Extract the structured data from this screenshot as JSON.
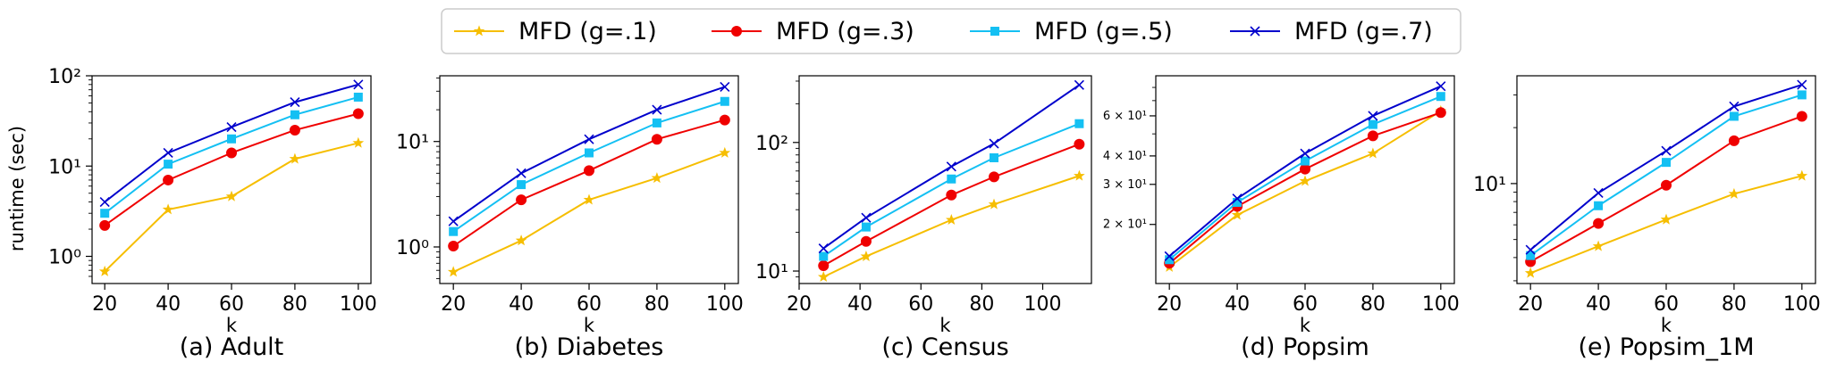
{
  "legend": {
    "entries": [
      {
        "label": "MFD (g=.1)",
        "color": "#f6be00",
        "marker": "star"
      },
      {
        "label": "MFD (g=.3)",
        "color": "#ef0000",
        "marker": "circle"
      },
      {
        "label": "MFD (g=.5)",
        "color": "#14c0f3",
        "marker": "square"
      },
      {
        "label": "MFD (g=.7)",
        "color": "#0000cc",
        "marker": "x"
      }
    ]
  },
  "chart_data": [
    {
      "type": "line",
      "caption": "(a) Adult",
      "xlabel": "k",
      "ylabel": "runtime (sec)",
      "yscale": "log",
      "xlim": [
        16,
        104
      ],
      "ylim": [
        0.5,
        100
      ],
      "x_ticks": [
        20,
        40,
        60,
        80,
        100
      ],
      "y_major_ticks": [
        1,
        10,
        100
      ],
      "y_tick_labels": [
        "10⁰",
        "10¹",
        "10²"
      ],
      "series": [
        {
          "name": "MFD (g=.1)",
          "x": [
            20,
            40,
            60,
            80,
            100
          ],
          "values": [
            0.68,
            3.3,
            4.6,
            12,
            18
          ]
        },
        {
          "name": "MFD (g=.3)",
          "x": [
            20,
            40,
            60,
            80,
            100
          ],
          "values": [
            2.2,
            7,
            14,
            25,
            38
          ]
        },
        {
          "name": "MFD (g=.5)",
          "x": [
            20,
            40,
            60,
            80,
            100
          ],
          "values": [
            3,
            10.5,
            20,
            37,
            58
          ]
        },
        {
          "name": "MFD (g=.7)",
          "x": [
            20,
            40,
            60,
            80,
            100
          ],
          "values": [
            4,
            14,
            27,
            51,
            80
          ]
        }
      ]
    },
    {
      "type": "line",
      "caption": "(b) Diabetes",
      "xlabel": "k",
      "ylabel": "",
      "yscale": "log",
      "xlim": [
        16,
        104
      ],
      "ylim": [
        0.45,
        42
      ],
      "x_ticks": [
        20,
        40,
        60,
        80,
        100
      ],
      "y_major_ticks": [
        1,
        10
      ],
      "y_tick_labels": [
        "10⁰",
        "10¹"
      ],
      "series": [
        {
          "name": "MFD (g=.1)",
          "x": [
            20,
            40,
            60,
            80,
            100
          ],
          "values": [
            0.58,
            1.15,
            2.8,
            4.5,
            7.8
          ]
        },
        {
          "name": "MFD (g=.3)",
          "x": [
            20,
            40,
            60,
            80,
            100
          ],
          "values": [
            1.02,
            2.8,
            5.3,
            10.5,
            16
          ]
        },
        {
          "name": "MFD (g=.5)",
          "x": [
            20,
            40,
            60,
            80,
            100
          ],
          "values": [
            1.4,
            3.9,
            7.8,
            15,
            24
          ]
        },
        {
          "name": "MFD (g=.7)",
          "x": [
            20,
            40,
            60,
            80,
            100
          ],
          "values": [
            1.75,
            5,
            10.5,
            20,
            33
          ]
        }
      ]
    },
    {
      "type": "line",
      "caption": "(c) Census",
      "xlabel": "k",
      "ylabel": "",
      "yscale": "log",
      "xlim": [
        20,
        116
      ],
      "ylim": [
        8,
        330
      ],
      "x_ticks": [
        20,
        40,
        60,
        80,
        100
      ],
      "y_major_ticks": [
        10,
        100
      ],
      "y_tick_labels": [
        "10¹",
        "10²"
      ],
      "series": [
        {
          "name": "MFD (g=.1)",
          "x": [
            28,
            42,
            70,
            84,
            112
          ],
          "values": [
            9,
            13,
            25,
            33,
            55
          ]
        },
        {
          "name": "MFD (g=.3)",
          "x": [
            28,
            42,
            70,
            84,
            112
          ],
          "values": [
            11,
            17,
            39,
            54,
            97
          ]
        },
        {
          "name": "MFD (g=.5)",
          "x": [
            28,
            42,
            70,
            84,
            112
          ],
          "values": [
            13,
            22,
            52,
            76,
            140
          ]
        },
        {
          "name": "MFD (g=.7)",
          "x": [
            28,
            42,
            70,
            84,
            112
          ],
          "values": [
            15,
            26,
            65,
            98,
            280
          ]
        }
      ]
    },
    {
      "type": "line",
      "caption": "(d) Popsim",
      "xlabel": "k",
      "ylabel": "",
      "yscale": "log",
      "xlim": [
        16,
        104
      ],
      "ylim": [
        11,
        90
      ],
      "x_ticks": [
        20,
        40,
        60,
        80,
        100
      ],
      "y_major_ticks": [
        20,
        30,
        40,
        60
      ],
      "y_tick_labels": [
        "2 × 10¹",
        "3 × 10¹",
        "4 × 10¹",
        "6 × 10¹"
      ],
      "y_tick_label_style": "small",
      "series": [
        {
          "name": "MFD (g=.1)",
          "x": [
            20,
            40,
            60,
            80,
            100
          ],
          "values": [
            13,
            22,
            31,
            41,
            63
          ]
        },
        {
          "name": "MFD (g=.3)",
          "x": [
            20,
            40,
            60,
            80,
            100
          ],
          "values": [
            13.5,
            24,
            35,
            49,
            62
          ]
        },
        {
          "name": "MFD (g=.5)",
          "x": [
            20,
            40,
            60,
            80,
            100
          ],
          "values": [
            14,
            25,
            38,
            55,
            73
          ]
        },
        {
          "name": "MFD (g=.7)",
          "x": [
            20,
            40,
            60,
            80,
            100
          ],
          "values": [
            14.5,
            26,
            41,
            60,
            81
          ]
        }
      ]
    },
    {
      "type": "line",
      "caption": "(e) Popsim_1M",
      "xlabel": "k",
      "ylabel": "",
      "yscale": "log",
      "xlim": [
        16,
        104
      ],
      "ylim": [
        2.9,
        38
      ],
      "x_ticks": [
        20,
        40,
        60,
        80,
        100
      ],
      "y_major_ticks": [
        10
      ],
      "y_tick_labels": [
        "10¹"
      ],
      "series": [
        {
          "name": "MFD (g=.1)",
          "x": [
            20,
            40,
            60,
            80,
            100
          ],
          "values": [
            3.3,
            4.6,
            6.4,
            8.8,
            11
          ]
        },
        {
          "name": "MFD (g=.3)",
          "x": [
            20,
            40,
            60,
            80,
            100
          ],
          "values": [
            3.8,
            6.1,
            9.8,
            17,
            23
          ]
        },
        {
          "name": "MFD (g=.5)",
          "x": [
            20,
            40,
            60,
            80,
            100
          ],
          "values": [
            4.1,
            7.6,
            13,
            23,
            30
          ]
        },
        {
          "name": "MFD (g=.7)",
          "x": [
            20,
            40,
            60,
            80,
            100
          ],
          "values": [
            4.4,
            8.9,
            15,
            26,
            34
          ]
        }
      ]
    }
  ]
}
